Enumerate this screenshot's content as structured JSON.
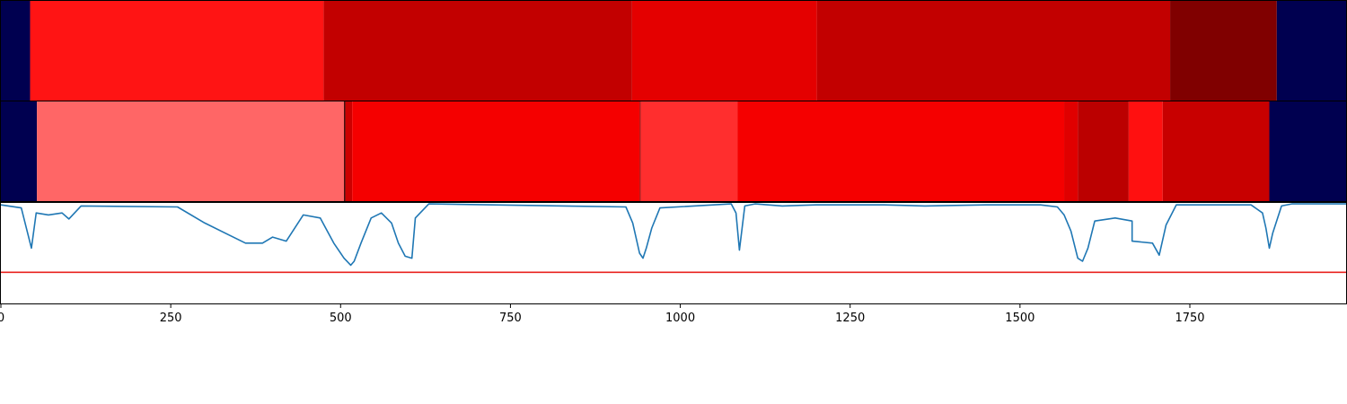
{
  "chart_data": {
    "type": "heatmap",
    "title": "",
    "xlabel": "",
    "xlim": [
      0,
      1980
    ],
    "xticks": [
      0,
      250,
      500,
      750,
      1000,
      1250,
      1500,
      1750
    ],
    "xtick_labels": [
      "0",
      "250",
      "500",
      "750",
      "1000",
      "1250",
      "1500",
      "1750"
    ],
    "grid": false,
    "rows": [
      {
        "segments": [
          {
            "start": 0,
            "end": 43,
            "color": "#000050"
          },
          {
            "start": 43,
            "end": 475,
            "color": "#ff1414"
          },
          {
            "start": 475,
            "end": 929,
            "color": "#c20000"
          },
          {
            "start": 929,
            "end": 1201,
            "color": "#e40000"
          },
          {
            "start": 1201,
            "end": 1721,
            "color": "#c20000"
          },
          {
            "start": 1721,
            "end": 1878,
            "color": "#800000"
          },
          {
            "start": 1878,
            "end": 1980,
            "color": "#000050"
          }
        ]
      },
      {
        "segments": [
          {
            "start": 0,
            "end": 53,
            "color": "#000050"
          },
          {
            "start": 53,
            "end": 505,
            "color": "#ff6666"
          },
          {
            "start": 505,
            "end": 507,
            "color": "#3a0000"
          },
          {
            "start": 507,
            "end": 517,
            "color": "#cc0000"
          },
          {
            "start": 517,
            "end": 940,
            "color": "#f50000"
          },
          {
            "start": 940,
            "end": 942,
            "color": "#b00000"
          },
          {
            "start": 942,
            "end": 1084,
            "color": "#ff2e2e"
          },
          {
            "start": 1084,
            "end": 1565,
            "color": "#f50000"
          },
          {
            "start": 1565,
            "end": 1585,
            "color": "#e00000"
          },
          {
            "start": 1585,
            "end": 1660,
            "color": "#bb0000"
          },
          {
            "start": 1660,
            "end": 1710,
            "color": "#ff1010"
          },
          {
            "start": 1710,
            "end": 1867,
            "color": "#c80000"
          },
          {
            "start": 1867,
            "end": 1980,
            "color": "#000050"
          }
        ]
      }
    ],
    "line": {
      "color": "#1f77b4",
      "ylim": [
        0,
        1
      ],
      "threshold": 0.31,
      "threshold_color": "#e8231f",
      "baseline": 0.98,
      "dips": [
        [
          0,
          0.98
        ],
        [
          30,
          0.95
        ],
        [
          45,
          0.55
        ],
        [
          52,
          0.9
        ],
        [
          70,
          0.88
        ],
        [
          90,
          0.9
        ],
        [
          100,
          0.84
        ],
        [
          118,
          0.97
        ],
        [
          260,
          0.96
        ],
        [
          300,
          0.8
        ],
        [
          360,
          0.6
        ],
        [
          385,
          0.6
        ],
        [
          400,
          0.66
        ],
        [
          420,
          0.62
        ],
        [
          445,
          0.88
        ],
        [
          470,
          0.85
        ],
        [
          490,
          0.6
        ],
        [
          505,
          0.45
        ],
        [
          515,
          0.38
        ],
        [
          520,
          0.42
        ],
        [
          530,
          0.6
        ],
        [
          545,
          0.85
        ],
        [
          560,
          0.9
        ],
        [
          575,
          0.8
        ],
        [
          585,
          0.6
        ],
        [
          595,
          0.47
        ],
        [
          605,
          0.45
        ],
        [
          610,
          0.85
        ],
        [
          630,
          0.99
        ],
        [
          920,
          0.96
        ],
        [
          930,
          0.8
        ],
        [
          940,
          0.5
        ],
        [
          945,
          0.45
        ],
        [
          950,
          0.55
        ],
        [
          958,
          0.75
        ],
        [
          970,
          0.95
        ],
        [
          1075,
          0.99
        ],
        [
          1082,
          0.9
        ],
        [
          1087,
          0.53
        ],
        [
          1095,
          0.97
        ],
        [
          1110,
          0.99
        ],
        [
          1150,
          0.97
        ],
        [
          1200,
          0.98
        ],
        [
          1300,
          0.98
        ],
        [
          1360,
          0.97
        ],
        [
          1450,
          0.98
        ],
        [
          1530,
          0.98
        ],
        [
          1555,
          0.96
        ],
        [
          1565,
          0.88
        ],
        [
          1575,
          0.72
        ],
        [
          1585,
          0.45
        ],
        [
          1592,
          0.42
        ],
        [
          1600,
          0.55
        ],
        [
          1610,
          0.82
        ],
        [
          1640,
          0.85
        ],
        [
          1665,
          0.82
        ],
        [
          1665,
          0.62
        ],
        [
          1695,
          0.6
        ],
        [
          1705,
          0.48
        ],
        [
          1715,
          0.78
        ],
        [
          1730,
          0.98
        ],
        [
          1840,
          0.98
        ],
        [
          1857,
          0.9
        ],
        [
          1862,
          0.75
        ],
        [
          1867,
          0.55
        ],
        [
          1872,
          0.7
        ],
        [
          1885,
          0.97
        ],
        [
          1900,
          0.99
        ],
        [
          1980,
          0.99
        ]
      ]
    }
  }
}
